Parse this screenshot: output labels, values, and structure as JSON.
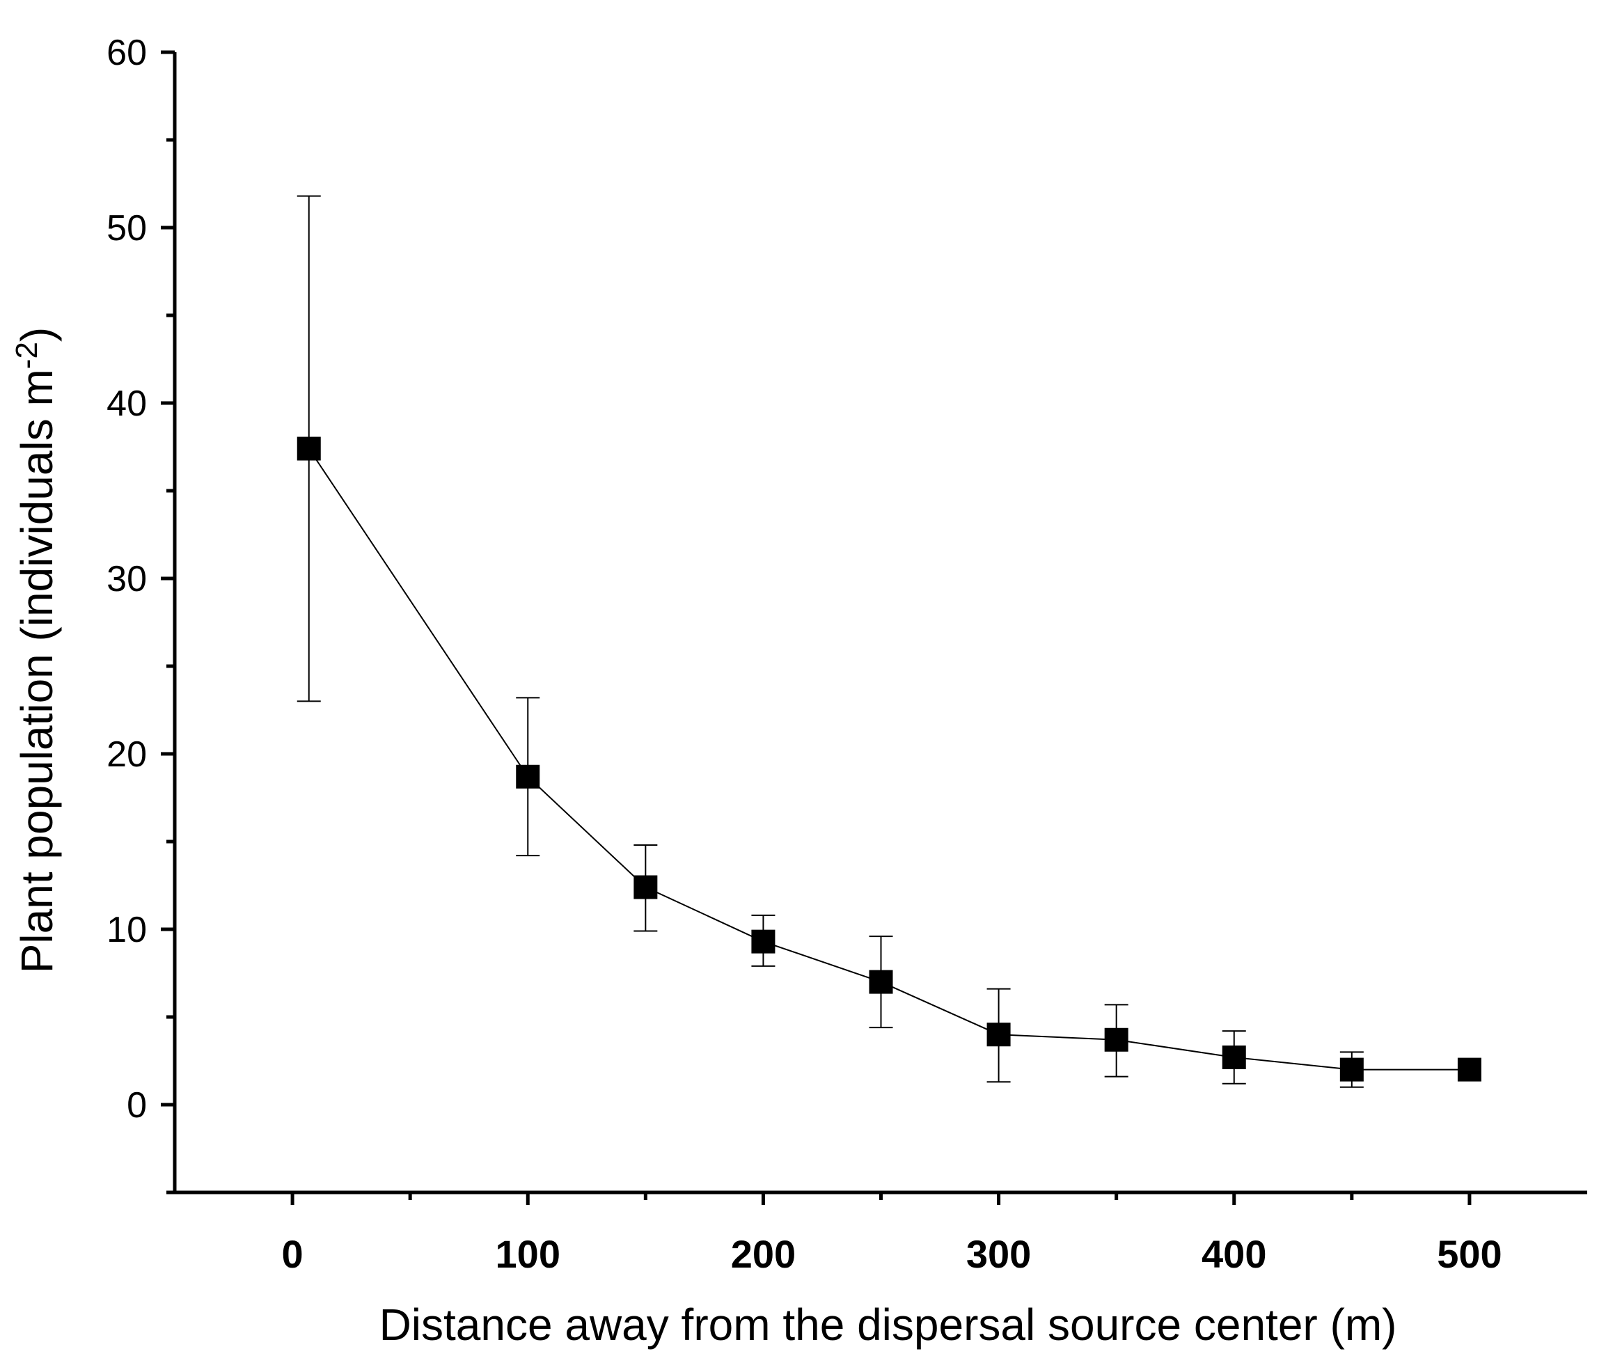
{
  "chart_data": {
    "type": "scatter",
    "title": "",
    "xlabel": "Distance away from the dispersal source center (m)",
    "ylabel": {
      "main": "Plant population (individuals m",
      "superscript": "-2",
      "close": ")"
    },
    "xlim": [
      -50,
      550
    ],
    "ylim": [
      -5,
      60
    ],
    "x_ticks": [
      0,
      100,
      200,
      300,
      400,
      500
    ],
    "x_minor_ticks": [
      50,
      150,
      250,
      350,
      450
    ],
    "y_ticks": [
      0,
      10,
      20,
      30,
      40,
      50,
      60
    ],
    "y_minor_ticks": [
      -5,
      5,
      15,
      25,
      35,
      45,
      55
    ],
    "x_tick_labels": [
      "0",
      "100",
      "200",
      "300",
      "400",
      "500"
    ],
    "y_tick_labels": [
      "0",
      "10",
      "20",
      "30",
      "40",
      "50",
      "60"
    ],
    "grid": false,
    "marker": "square",
    "color": "#000000",
    "series": [
      {
        "points": [
          {
            "x": 7,
            "y": 37.4,
            "lower": 23.0,
            "upper": 51.8
          },
          {
            "x": 100,
            "y": 18.7,
            "lower": 14.2,
            "upper": 23.2
          },
          {
            "x": 150,
            "y": 12.4,
            "lower": 9.9,
            "upper": 14.8
          },
          {
            "x": 200,
            "y": 9.3,
            "lower": 7.9,
            "upper": 10.8
          },
          {
            "x": 250,
            "y": 7.0,
            "lower": 4.4,
            "upper": 9.6
          },
          {
            "x": 300,
            "y": 4.0,
            "lower": 1.3,
            "upper": 6.6
          },
          {
            "x": 350,
            "y": 3.7,
            "lower": 1.6,
            "upper": 5.7
          },
          {
            "x": 400,
            "y": 2.7,
            "lower": 1.2,
            "upper": 4.2
          },
          {
            "x": 450,
            "y": 2.0,
            "lower": 1.0,
            "upper": 3.0
          },
          {
            "x": 500,
            "y": 2.0,
            "lower": 2.0,
            "upper": 2.0
          }
        ]
      }
    ]
  }
}
